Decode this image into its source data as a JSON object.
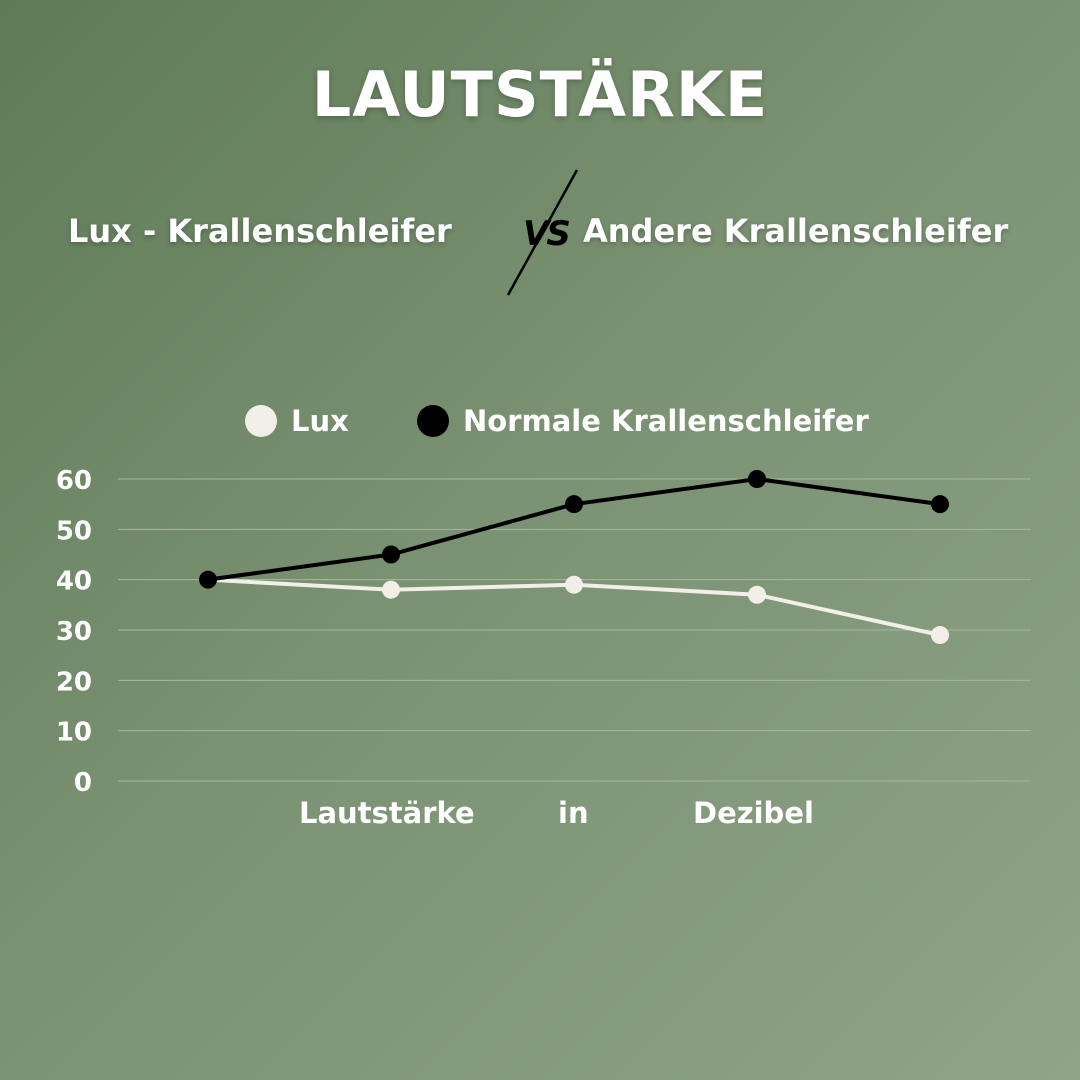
{
  "title": "LAUTSTÄRKE",
  "left_label": "Lux - Krallenschleifer",
  "vs_label": "VS",
  "right_label": "Andere Krallenschleifer",
  "colors": {
    "lux": "#f2efe9",
    "normal": "#000000",
    "background": "#7a9172",
    "grid": "#a8b8a0"
  },
  "chart_data": {
    "type": "line",
    "x": [
      1,
      2,
      3,
      4,
      5
    ],
    "series": [
      {
        "name": "Lux",
        "color": "#f2efe9",
        "values": [
          40,
          38,
          39,
          37,
          29
        ]
      },
      {
        "name": "Normale Krallenschleifer",
        "color": "#000000",
        "values": [
          40,
          45,
          55,
          60,
          55
        ]
      }
    ],
    "xlabel_words": [
      "Lautstärke",
      "in",
      "Dezibel"
    ],
    "ylim": [
      0,
      60
    ],
    "yticks": [
      "0",
      "10",
      "20",
      "30",
      "40",
      "50",
      "60"
    ],
    "grid": true,
    "legend": "top"
  }
}
